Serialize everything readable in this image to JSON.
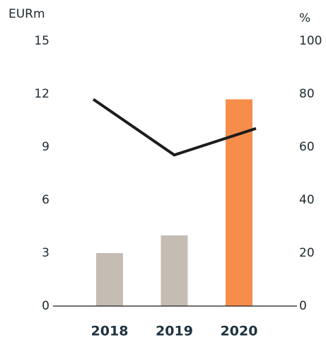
{
  "chart_data": {
    "type": "bar",
    "y_label": "EURm",
    "y2_label": "%",
    "categories": [
      "2018",
      "2019",
      "2020"
    ],
    "series": [
      {
        "type": "bar",
        "values": [
          3.0,
          4.0,
          11.7
        ],
        "colors": [
          "#c5bdb3",
          "#c5bdb3",
          "#f68d4b"
        ]
      },
      {
        "type": "line",
        "axis": "y2",
        "color": "#1c1c1c",
        "values": [
          78,
          57,
          67
        ]
      }
    ],
    "ylim": [
      0,
      15
    ],
    "yticks": [
      0,
      3,
      6,
      9,
      12,
      15
    ],
    "y2lim": [
      0,
      100
    ],
    "y2ticks": [
      0,
      20,
      40,
      60,
      80,
      100
    ]
  }
}
